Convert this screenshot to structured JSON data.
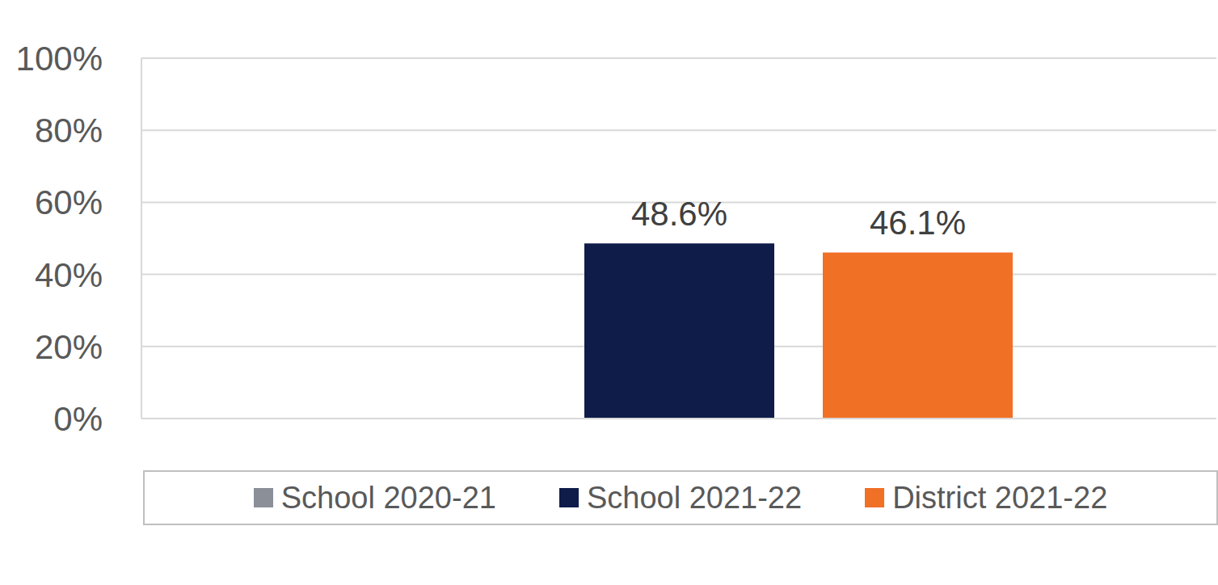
{
  "chart_data": {
    "type": "bar",
    "categories": [
      null
    ],
    "series": [
      {
        "name": "School 2020-21",
        "color": "#8a8f98",
        "values": [
          null
        ],
        "value_labels": [
          null
        ]
      },
      {
        "name": "School 2021-22",
        "color": "#0f1c4a",
        "values": [
          48.6
        ],
        "value_labels": [
          "48.6%"
        ]
      },
      {
        "name": "District 2021-22",
        "color": "#f07026",
        "values": [
          46.1
        ],
        "value_labels": [
          "46.1%"
        ]
      }
    ],
    "ylim": [
      0,
      100
    ],
    "yticks": [
      {
        "value": 0,
        "label": "0%"
      },
      {
        "value": 20,
        "label": "20%"
      },
      {
        "value": 40,
        "label": "40%"
      },
      {
        "value": 60,
        "label": "60%"
      },
      {
        "value": 80,
        "label": "80%"
      },
      {
        "value": 100,
        "label": "100%"
      }
    ],
    "grid": true,
    "legend": "bottom",
    "data_labels": true,
    "tick_labels": "y"
  }
}
